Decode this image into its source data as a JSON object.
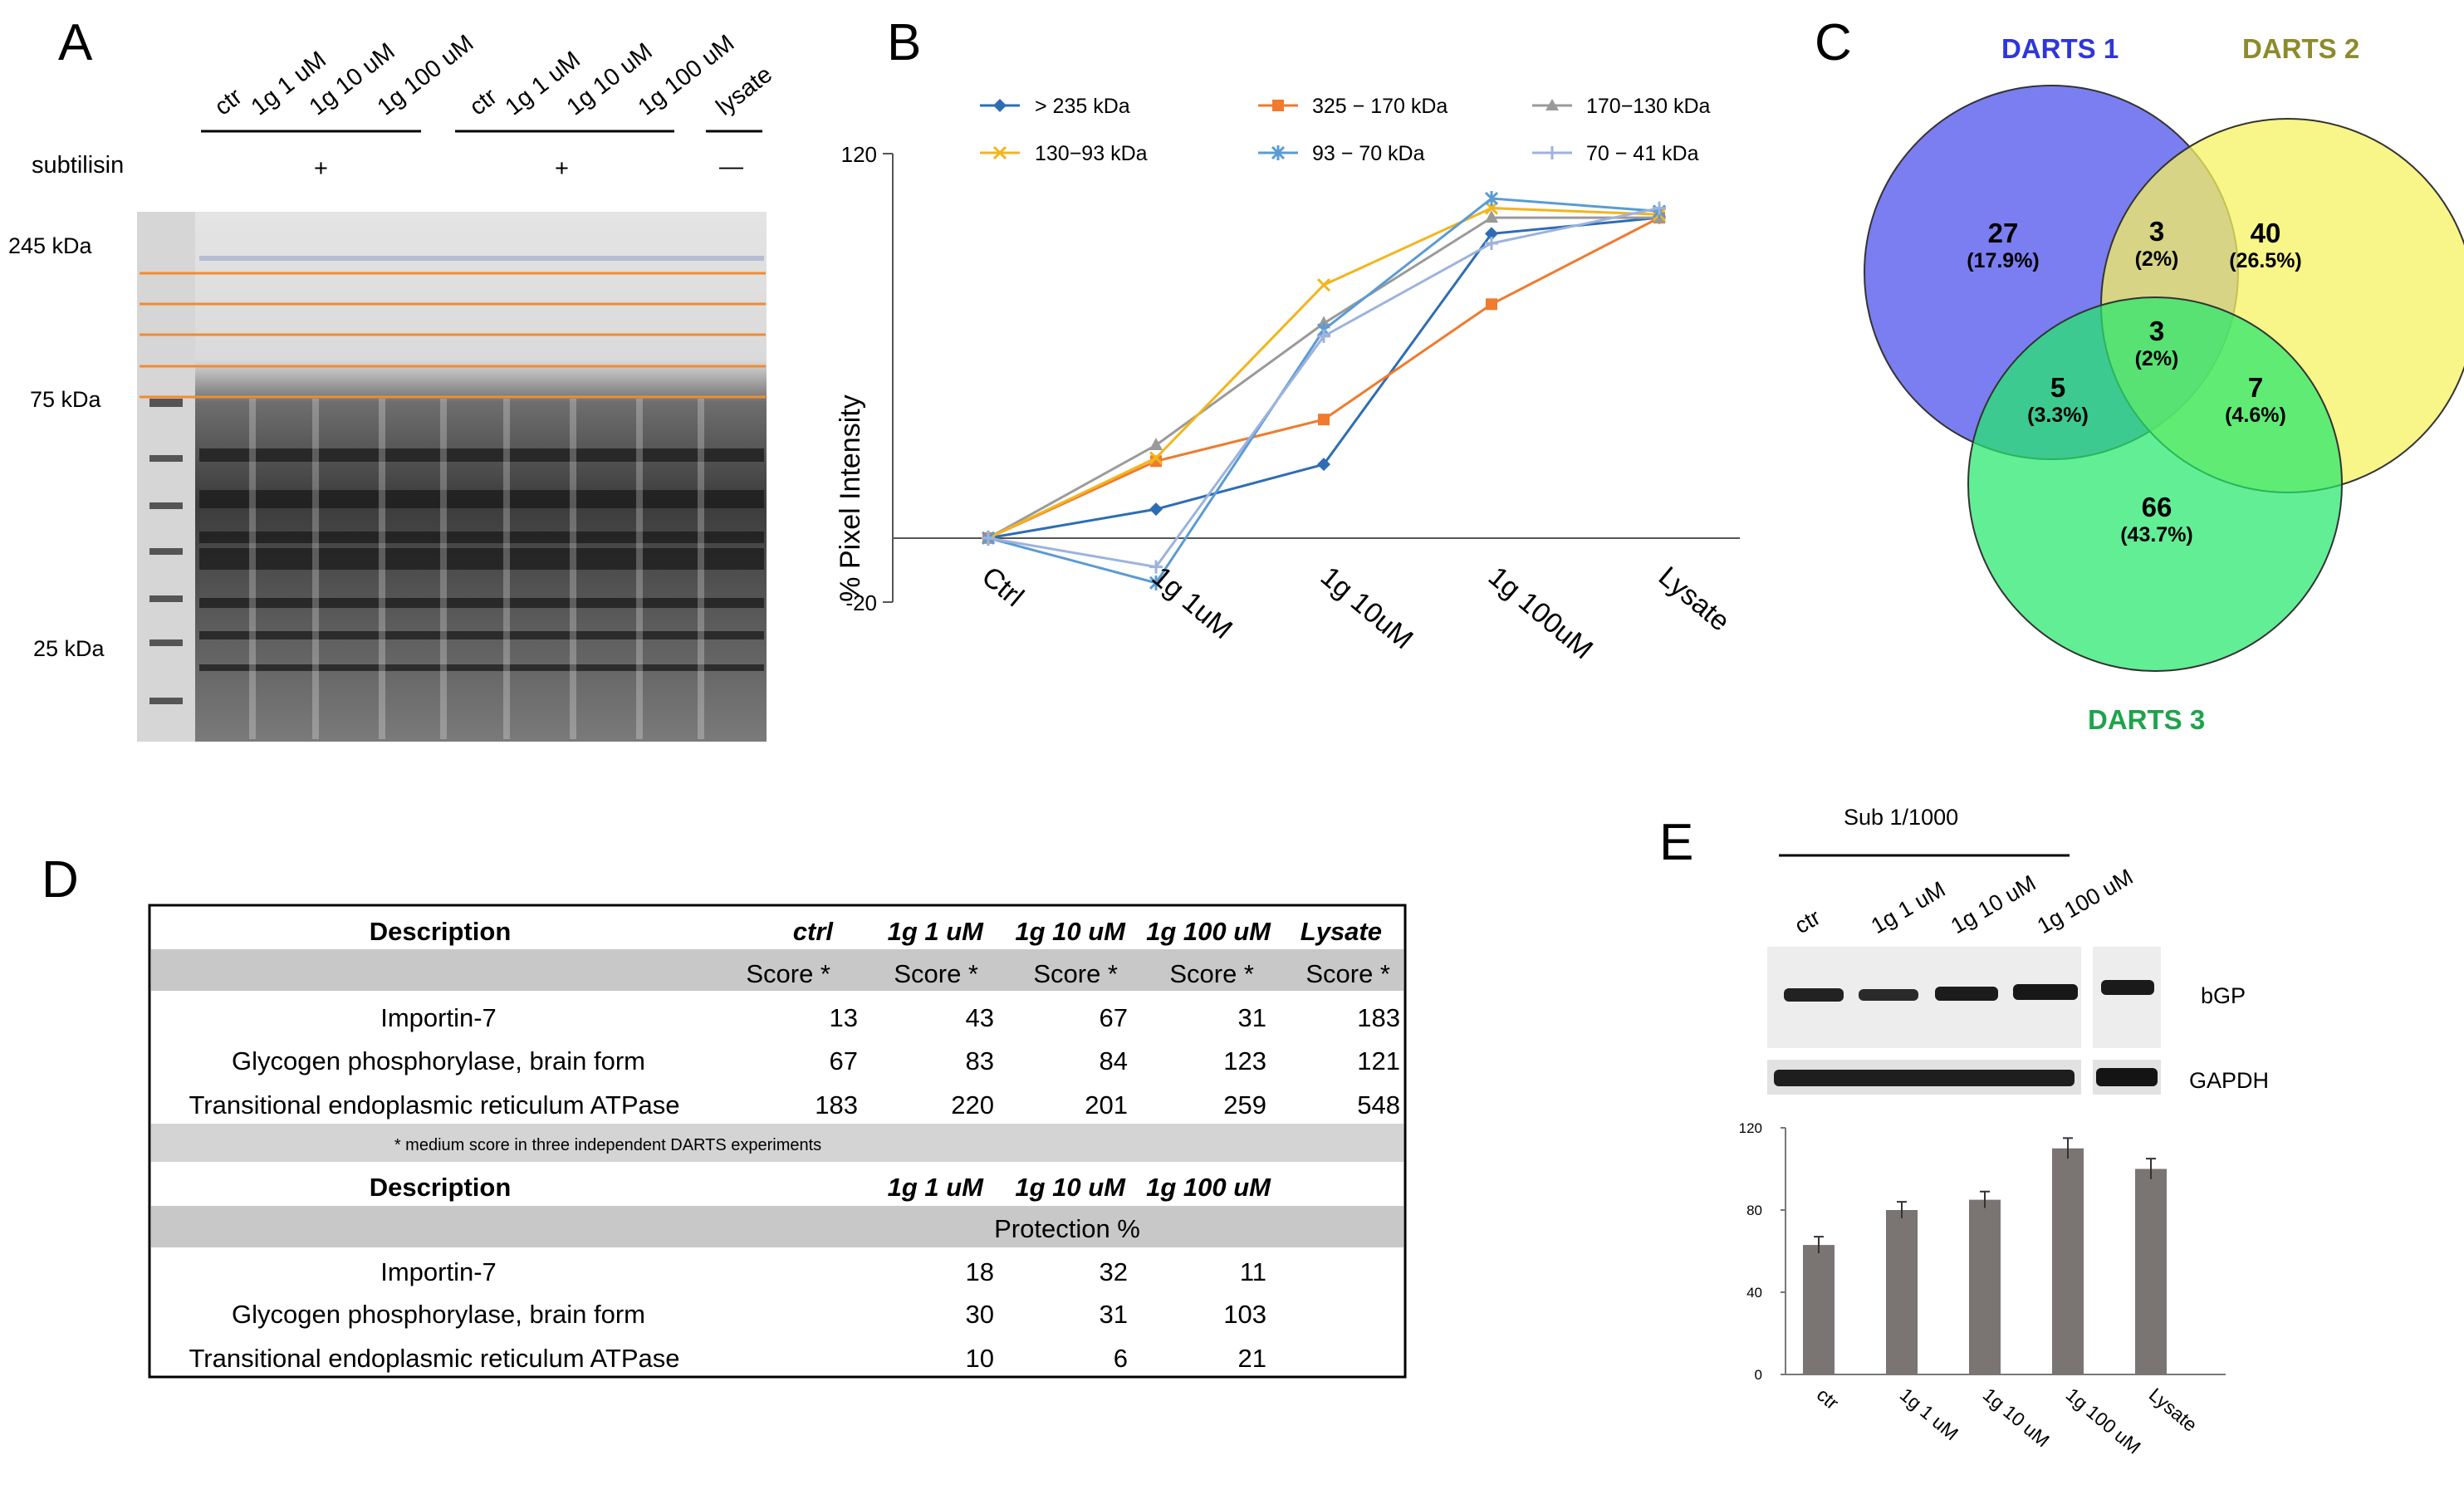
{
  "panels": {
    "a": "A",
    "b": "B",
    "c": "C",
    "d": "D",
    "e": "E"
  },
  "panel_a": {
    "lanes": [
      "ctr",
      "1g 1 uM",
      "1g 10 uM",
      "1g 100 uM",
      "ctr",
      "1g 1 uM",
      "1g 10 uM",
      "1g 100 uM",
      "lysate"
    ],
    "subtilisin_label": "subtilisin",
    "plus1": "+",
    "plus2": "+",
    "minus": "—",
    "markers": [
      "245 kDa",
      "75 kDa",
      "25 kDa"
    ],
    "colors": {
      "cut_lines": "#f28b30"
    }
  },
  "panel_b": {
    "legend": [
      "> 235 kDa",
      "325 − 170 kDa",
      "170−130 kDa",
      "130−93 kDa",
      "93 − 70 kDa",
      "70 − 41 kDa"
    ],
    "y_max_label": "120",
    "y_min_label": "-20",
    "ylabel": "% Pixel Intensity",
    "categories": [
      "Ctrl",
      "1g 1uM",
      "1g 10uM",
      "1g 100uM",
      "Lysate"
    ]
  },
  "chart_data": [
    {
      "type": "line",
      "title": "",
      "xlabel": "",
      "ylabel": "% Pixel Intensity",
      "categories": [
        "Ctrl",
        "1g 1uM",
        "1g 10uM",
        "1g 100uM",
        "Lysate"
      ],
      "ylim": [
        -20,
        120
      ],
      "series": [
        {
          "name": "> 235 kDa",
          "color": "#2e6db4",
          "marker": "diamond",
          "values": [
            0,
            9,
            23,
            95,
            100
          ]
        },
        {
          "name": "325 − 170 kDa",
          "color": "#f07a2e",
          "marker": "square",
          "values": [
            0,
            24,
            37,
            73,
            100
          ]
        },
        {
          "name": "170−130 kDa",
          "color": "#9a9a9a",
          "marker": "triangle",
          "values": [
            0,
            29,
            67,
            100,
            100
          ]
        },
        {
          "name": "130−93 kDa",
          "color": "#f2b51c",
          "marker": "x",
          "values": [
            0,
            25,
            79,
            103,
            101
          ]
        },
        {
          "name": "93 − 70 kDa",
          "color": "#5a9bd4",
          "marker": "star",
          "values": [
            0,
            -14,
            65,
            106,
            102
          ]
        },
        {
          "name": "70 − 41 kDa",
          "color": "#9cb3dd",
          "marker": "plus",
          "values": [
            0,
            -9,
            63,
            92,
            103
          ]
        }
      ]
    },
    {
      "type": "bar",
      "title": "",
      "xlabel": "",
      "ylabel": "",
      "categories": [
        "ctr",
        "1g 1 uM",
        "1g 10 uM",
        "1g 100 uM",
        "Lysate"
      ],
      "values": [
        63,
        80,
        85,
        110,
        100
      ],
      "errors": [
        4,
        4,
        4,
        5,
        5
      ],
      "ylim": [
        0,
        120
      ],
      "yticks": [
        "0",
        "40",
        "80",
        "120"
      ],
      "color": "#7a7472"
    }
  ],
  "panel_c": {
    "sets": [
      "DARTS 1",
      "DARTS 2",
      "DARTS 3"
    ],
    "regions": {
      "only1": {
        "n": "27",
        "p": "(17.9%)"
      },
      "only2": {
        "n": "40",
        "p": "(26.5%)"
      },
      "only3": {
        "n": "66",
        "p": "(43.7%)"
      },
      "r12": {
        "n": "3",
        "p": "(2%)"
      },
      "r123": {
        "n": "3",
        "p": "(2%)"
      },
      "r13": {
        "n": "5",
        "p": "(3.3%)"
      },
      "r23": {
        "n": "7",
        "p": "(4.6%)"
      }
    },
    "colors": {
      "set1": "#7b7ef0",
      "set2": "#f5f262",
      "set3": "#25e86c",
      "label1": "#2f36d8",
      "label2": "#8d8a2c",
      "label3": "#1ea34c"
    }
  },
  "panel_d": {
    "head1": [
      "Description",
      "ctrl",
      "1g 1 uM",
      "1g 10 uM",
      "1g 100 uM",
      "Lysate"
    ],
    "score_label": "Score *",
    "rows1": [
      {
        "desc": "Importin-7",
        "v": [
          "13",
          "43",
          "67",
          "31",
          "183"
        ]
      },
      {
        "desc": "Glycogen phosphorylase, brain form",
        "v": [
          "67",
          "83",
          "84",
          "123",
          "121"
        ]
      },
      {
        "desc": "Transitional endoplasmic reticulum ATPase",
        "v": [
          "183",
          "220",
          "201",
          "259",
          "548"
        ]
      }
    ],
    "footnote": "* medium score in three independent DARTS experiments",
    "head2": [
      "Description",
      "1g 1 uM",
      "1g 10 uM",
      "1g 100 uM"
    ],
    "protection_label": "Protection %",
    "rows2": [
      {
        "desc": "Importin-7",
        "v": [
          "18",
          "32",
          "11"
        ]
      },
      {
        "desc": "Glycogen phosphorylase, brain form",
        "v": [
          "30",
          "31",
          "103"
        ]
      },
      {
        "desc": "Transitional endoplasmic reticulum ATPase",
        "v": [
          "10",
          "6",
          "21"
        ]
      }
    ]
  },
  "panel_e": {
    "sub_label": "Sub 1/1000",
    "lanes": [
      "ctr",
      "1g 1 uM",
      "1g 10 uM",
      "1g 100 uM"
    ],
    "bgp": "bGP",
    "gapdh": "GAPDH"
  }
}
